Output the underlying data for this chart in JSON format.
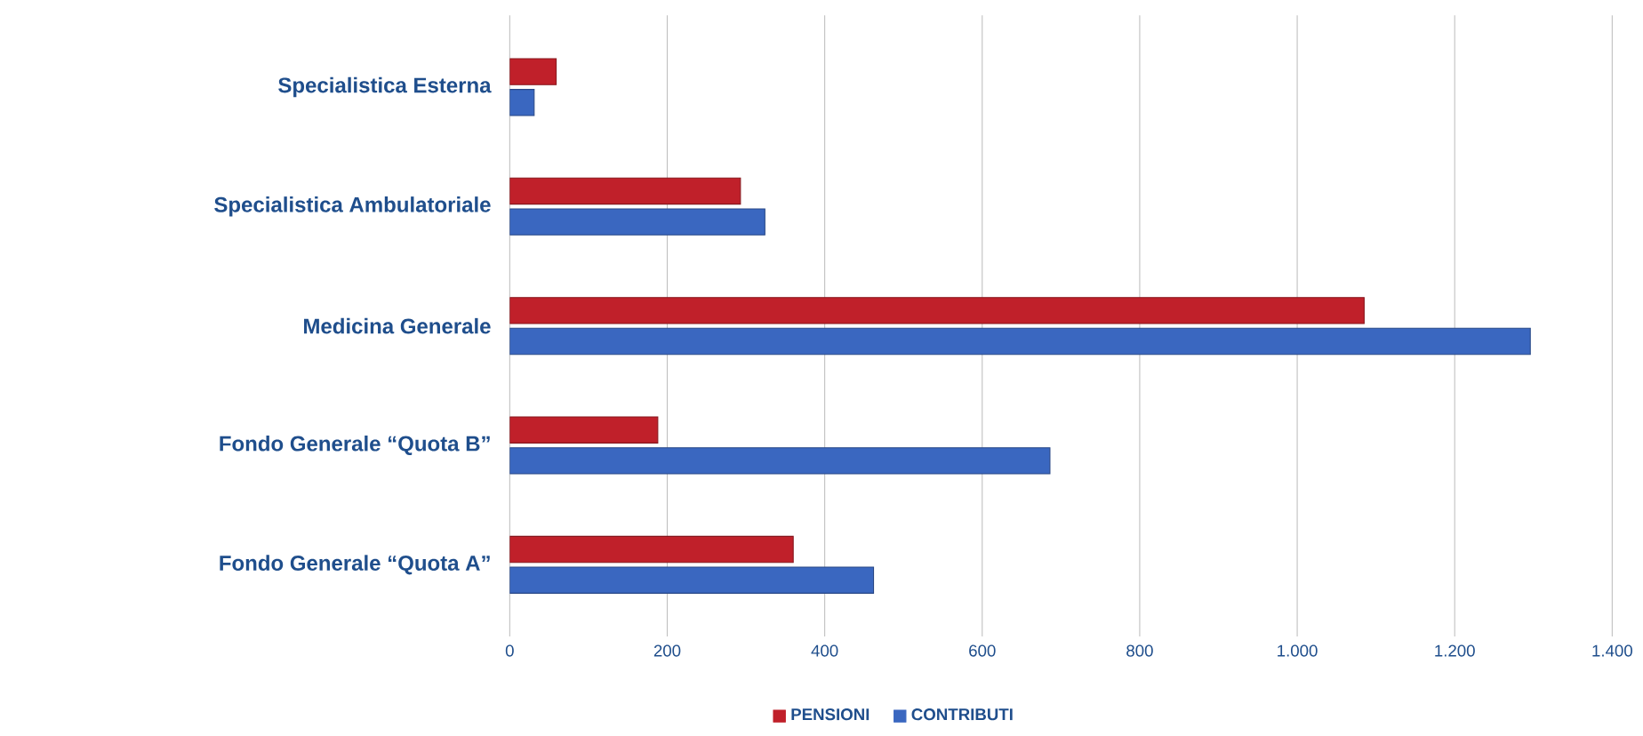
{
  "chart_data": {
    "type": "bar",
    "orientation": "horizontal",
    "categories": [
      "Specialistica Esterna",
      "Specialistica Ambulatoriale",
      "Medicina Generale",
      "Fondo Generale “Quota B”",
      "Fondo Generale “Quota A”"
    ],
    "series": [
      {
        "name": "PENSIONI",
        "color": "#c0202a",
        "values": [
          59,
          293,
          1085,
          188,
          360
        ]
      },
      {
        "name": "CONTRIBUTI",
        "color": "#3a67c0",
        "values": [
          31,
          324,
          1296,
          686,
          462
        ]
      }
    ],
    "xlim": [
      0,
      1400
    ],
    "xticks": [
      0,
      200,
      400,
      600,
      800,
      {
        "value": 1000,
        "label": "1.000"
      },
      {
        "value": 1200,
        "label": "1.200"
      },
      {
        "value": 1400,
        "label": "1.400"
      }
    ],
    "grid": "x",
    "legend": "bottom"
  }
}
